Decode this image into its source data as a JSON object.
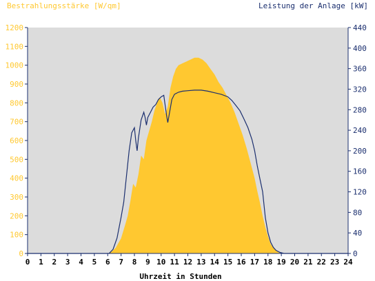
{
  "chart_data": {
    "type": "area",
    "title_left": "Bestrahlungsstärke [W/qm]",
    "title_right": "Leistung der Anlage [kW]",
    "xlabel": "Uhrzeit in Stunden",
    "xlim": [
      0,
      24
    ],
    "x_ticks": [
      "0",
      "1",
      "2",
      "3",
      "4",
      "5",
      "6",
      "7",
      "8",
      "9",
      "10",
      "11",
      "12",
      "13",
      "14",
      "15",
      "16",
      "17",
      "18",
      "19",
      "20",
      "21",
      "22",
      "23",
      "24"
    ],
    "y_left": {
      "lim": [
        0,
        1200
      ],
      "ticks": [
        "0",
        "100",
        "200",
        "300",
        "400",
        "500",
        "600",
        "700",
        "800",
        "900",
        "1000",
        "1100",
        "1200"
      ]
    },
    "y_right": {
      "lim": [
        0,
        440
      ],
      "ticks": [
        "0",
        "40",
        "80",
        "120",
        "160",
        "200",
        "240",
        "280",
        "320",
        "360",
        "400",
        "440"
      ]
    },
    "grid": false,
    "colors": {
      "irradiance": "#FFC830",
      "power": "#1A2E6E",
      "plot_bg": "#DCDCDC",
      "axis": "#1A2E6E"
    },
    "series": [
      {
        "axis": "left",
        "style": "area",
        "points": [
          [
            0,
            0
          ],
          [
            6.0,
            0
          ],
          [
            6.3,
            10
          ],
          [
            6.6,
            30
          ],
          [
            7.0,
            80
          ],
          [
            7.3,
            150
          ],
          [
            7.5,
            200
          ],
          [
            7.7,
            280
          ],
          [
            7.9,
            370
          ],
          [
            8.1,
            350
          ],
          [
            8.3,
            420
          ],
          [
            8.5,
            520
          ],
          [
            8.7,
            500
          ],
          [
            8.9,
            600
          ],
          [
            9.1,
            650
          ],
          [
            9.3,
            700
          ],
          [
            9.5,
            760
          ],
          [
            9.7,
            800
          ],
          [
            9.9,
            830
          ],
          [
            10.1,
            800
          ],
          [
            10.3,
            740
          ],
          [
            10.5,
            780
          ],
          [
            10.7,
            880
          ],
          [
            10.9,
            940
          ],
          [
            11.1,
            980
          ],
          [
            11.3,
            1000
          ],
          [
            11.6,
            1010
          ],
          [
            11.9,
            1020
          ],
          [
            12.2,
            1030
          ],
          [
            12.5,
            1040
          ],
          [
            12.8,
            1040
          ],
          [
            13.1,
            1030
          ],
          [
            13.4,
            1010
          ],
          [
            13.7,
            980
          ],
          [
            14.0,
            950
          ],
          [
            14.3,
            910
          ],
          [
            14.6,
            880
          ],
          [
            14.9,
            840
          ],
          [
            15.2,
            800
          ],
          [
            15.5,
            750
          ],
          [
            15.8,
            690
          ],
          [
            16.1,
            630
          ],
          [
            16.4,
            560
          ],
          [
            16.7,
            480
          ],
          [
            17.0,
            400
          ],
          [
            17.2,
            330
          ],
          [
            17.4,
            270
          ],
          [
            17.6,
            200
          ],
          [
            17.8,
            140
          ],
          [
            18.0,
            90
          ],
          [
            18.2,
            50
          ],
          [
            18.4,
            30
          ],
          [
            18.6,
            15
          ],
          [
            18.8,
            5
          ],
          [
            19.0,
            0
          ],
          [
            24,
            0
          ]
        ]
      },
      {
        "axis": "right",
        "style": "line",
        "points": [
          [
            0,
            0
          ],
          [
            6.1,
            0
          ],
          [
            6.4,
            8
          ],
          [
            6.7,
            30
          ],
          [
            7.0,
            70
          ],
          [
            7.2,
            100
          ],
          [
            7.4,
            150
          ],
          [
            7.6,
            200
          ],
          [
            7.8,
            235
          ],
          [
            8.0,
            245
          ],
          [
            8.1,
            220
          ],
          [
            8.2,
            200
          ],
          [
            8.3,
            225
          ],
          [
            8.5,
            260
          ],
          [
            8.7,
            275
          ],
          [
            8.8,
            265
          ],
          [
            8.9,
            250
          ],
          [
            9.0,
            265
          ],
          [
            9.2,
            275
          ],
          [
            9.4,
            285
          ],
          [
            9.6,
            290
          ],
          [
            9.8,
            300
          ],
          [
            10.0,
            305
          ],
          [
            10.2,
            308
          ],
          [
            10.4,
            270
          ],
          [
            10.5,
            255
          ],
          [
            10.6,
            270
          ],
          [
            10.8,
            300
          ],
          [
            11.0,
            310
          ],
          [
            11.3,
            314
          ],
          [
            11.6,
            316
          ],
          [
            12.0,
            317
          ],
          [
            12.5,
            318
          ],
          [
            13.0,
            318
          ],
          [
            13.5,
            316
          ],
          [
            14.0,
            313
          ],
          [
            14.5,
            310
          ],
          [
            15.0,
            305
          ],
          [
            15.3,
            298
          ],
          [
            15.6,
            288
          ],
          [
            15.9,
            278
          ],
          [
            16.2,
            262
          ],
          [
            16.5,
            245
          ],
          [
            16.8,
            222
          ],
          [
            17.0,
            200
          ],
          [
            17.2,
            170
          ],
          [
            17.4,
            145
          ],
          [
            17.6,
            120
          ],
          [
            17.8,
            70
          ],
          [
            18.0,
            40
          ],
          [
            18.2,
            22
          ],
          [
            18.4,
            12
          ],
          [
            18.6,
            6
          ],
          [
            18.9,
            2
          ],
          [
            19.2,
            0
          ],
          [
            24,
            0
          ]
        ]
      }
    ]
  }
}
